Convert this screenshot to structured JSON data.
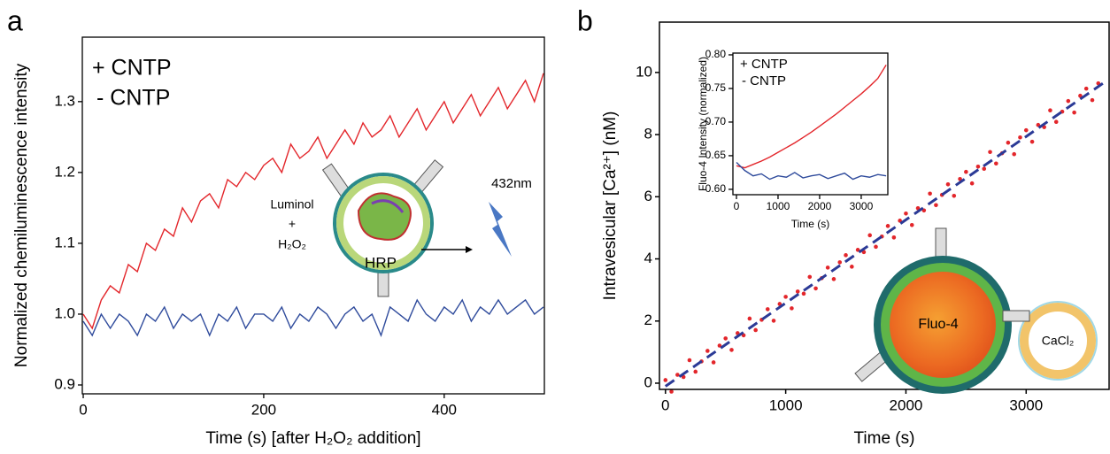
{
  "chart_data": [
    {
      "type": "line",
      "label": "a",
      "xlabel": "Time (s) [after H₂O₂ addition]",
      "ylabel": "Normalized chemiluminescence intensity",
      "x": [
        0,
        10,
        20,
        30,
        40,
        50,
        60,
        70,
        80,
        90,
        100,
        110,
        120,
        130,
        140,
        150,
        160,
        170,
        180,
        190,
        200,
        210,
        220,
        230,
        240,
        250,
        260,
        270,
        280,
        290,
        300,
        310,
        320,
        330,
        340,
        350,
        360,
        370,
        380,
        390,
        400,
        410,
        420,
        430,
        440,
        450,
        460,
        470,
        480,
        490,
        500,
        510
      ],
      "series": [
        {
          "name": "+ CNTP",
          "color": "#e3262b",
          "values": [
            1.0,
            0.98,
            1.02,
            1.04,
            1.03,
            1.07,
            1.06,
            1.1,
            1.09,
            1.12,
            1.11,
            1.15,
            1.13,
            1.16,
            1.17,
            1.15,
            1.19,
            1.18,
            1.2,
            1.19,
            1.21,
            1.22,
            1.2,
            1.24,
            1.22,
            1.23,
            1.25,
            1.22,
            1.24,
            1.26,
            1.24,
            1.27,
            1.25,
            1.26,
            1.28,
            1.25,
            1.27,
            1.29,
            1.26,
            1.28,
            1.3,
            1.27,
            1.29,
            1.31,
            1.28,
            1.3,
            1.32,
            1.29,
            1.31,
            1.33,
            1.3,
            1.34
          ]
        },
        {
          "name": "- CNTP",
          "color": "#2f4b9c",
          "values": [
            0.99,
            0.97,
            1.0,
            0.98,
            1.0,
            0.99,
            0.97,
            1.0,
            0.99,
            1.01,
            0.98,
            1.0,
            0.99,
            1.0,
            0.97,
            1.0,
            0.99,
            1.01,
            0.98,
            1.0,
            1.0,
            0.99,
            1.01,
            0.98,
            1.0,
            0.99,
            1.01,
            1.0,
            0.98,
            1.0,
            1.01,
            0.99,
            1.0,
            0.97,
            1.01,
            1.0,
            0.99,
            1.02,
            1.0,
            0.99,
            1.01,
            1.0,
            1.02,
            0.99,
            1.01,
            1.0,
            1.02,
            1.0,
            1.01,
            1.02,
            1.0,
            1.01
          ]
        }
      ],
      "xlim": [
        -1,
        511
      ],
      "ylim": [
        0.8875,
        1.391
      ],
      "xticks": [
        0,
        200,
        400
      ],
      "yticks": [
        0.9,
        {
          "value": 1,
          "label": "1.0"
        },
        1.1,
        1.2,
        1.3
      ],
      "legend": "upper left",
      "annotations": [
        "Luminol",
        "+",
        "H₂O₂",
        "HRP",
        "432nm"
      ]
    },
    {
      "type": "scatter",
      "label": "b",
      "xlabel": "Time (s)",
      "ylabel": "Intravesicular [Ca²⁺] (nM)",
      "series": [
        {
          "color": "#e3262b",
          "x": [
            0,
            50,
            100,
            150,
            200,
            250,
            300,
            350,
            400,
            450,
            500,
            550,
            600,
            650,
            700,
            750,
            800,
            850,
            900,
            950,
            1000,
            1050,
            1100,
            1150,
            1200,
            1250,
            1300,
            1350,
            1400,
            1450,
            1500,
            1550,
            1600,
            1650,
            1700,
            1750,
            1800,
            1850,
            1900,
            1950,
            2000,
            2050,
            2100,
            2150,
            2200,
            2250,
            2300,
            2350,
            2400,
            2450,
            2500,
            2550,
            2600,
            2650,
            2700,
            2750,
            2800,
            2850,
            2900,
            2950,
            3000,
            3050,
            3100,
            3150,
            3200,
            3250,
            3300,
            3350,
            3400,
            3450,
            3500,
            3550,
            3600
          ],
          "values": [
            0.1,
            -0.27,
            0.27,
            0.2,
            0.74,
            0.37,
            0.7,
            1.04,
            0.67,
            1.21,
            1.44,
            1.07,
            1.61,
            1.54,
            2.08,
            1.71,
            2.04,
            2.38,
            2.01,
            2.55,
            2.78,
            2.41,
            2.95,
            2.88,
            3.42,
            3.05,
            3.38,
            3.72,
            3.35,
            3.89,
            4.12,
            3.75,
            4.29,
            4.22,
            4.76,
            4.39,
            4.72,
            5.06,
            4.69,
            5.23,
            5.46,
            5.09,
            5.63,
            5.56,
            6.1,
            5.73,
            6.06,
            6.4,
            6.03,
            6.57,
            6.8,
            6.43,
            6.97,
            6.9,
            7.44,
            7.07,
            7.4,
            7.74,
            7.37,
            7.91,
            8.14,
            7.77,
            8.31,
            8.24,
            8.78,
            8.41,
            8.74,
            9.08,
            8.71,
            9.25,
            9.48,
            9.11,
            9.65
          ]
        },
        {
          "color": "#2b3a96",
          "kind": "dashed-line",
          "x": [
            0,
            3650
          ],
          "values": [
            -0.1,
            9.68
          ]
        }
      ],
      "xlim": [
        -50,
        3690
      ],
      "ylim": [
        -0.2,
        11.62
      ],
      "xticks": [
        0,
        1000,
        2000,
        3000
      ],
      "yticks": [
        0,
        2,
        4,
        6,
        8,
        10
      ],
      "annotations": [
        "Fluo-4",
        "CaCl₂"
      ]
    },
    {
      "type": "line",
      "xlabel": "Time (s)",
      "ylabel": "Fluo-4 Intensity (normalized)",
      "x": [
        0,
        200,
        400,
        600,
        800,
        1000,
        1200,
        1400,
        1600,
        1800,
        2000,
        2200,
        2400,
        2600,
        2800,
        3000,
        3200,
        3400,
        3600
      ],
      "series": [
        {
          "name": "+ CNTP",
          "color": "#e3262b",
          "values": [
            0.635,
            0.632,
            0.637,
            0.642,
            0.648,
            0.655,
            0.662,
            0.669,
            0.677,
            0.685,
            0.694,
            0.703,
            0.712,
            0.722,
            0.732,
            0.742,
            0.753,
            0.765,
            0.785
          ]
        },
        {
          "name": "- CNTP",
          "color": "#2f4b9c",
          "values": [
            0.64,
            0.628,
            0.62,
            0.623,
            0.615,
            0.62,
            0.618,
            0.625,
            0.617,
            0.62,
            0.622,
            0.616,
            0.62,
            0.624,
            0.615,
            0.62,
            0.618,
            0.622,
            0.62
          ]
        }
      ],
      "xlim": [
        -85,
        3640
      ],
      "ylim": [
        0.592,
        0.8026
      ],
      "xticks": [
        0,
        1000,
        2000,
        3000
      ],
      "yticks": [
        {
          "value": 0.6,
          "label": "0.60"
        },
        {
          "value": 0.65,
          "label": "0.65"
        },
        {
          "value": 0.7,
          "label": "0.70"
        },
        {
          "value": 0.75,
          "label": "0.75"
        },
        {
          "value": 0.8,
          "label": "0.80"
        }
      ],
      "legend": "upper left"
    }
  ]
}
